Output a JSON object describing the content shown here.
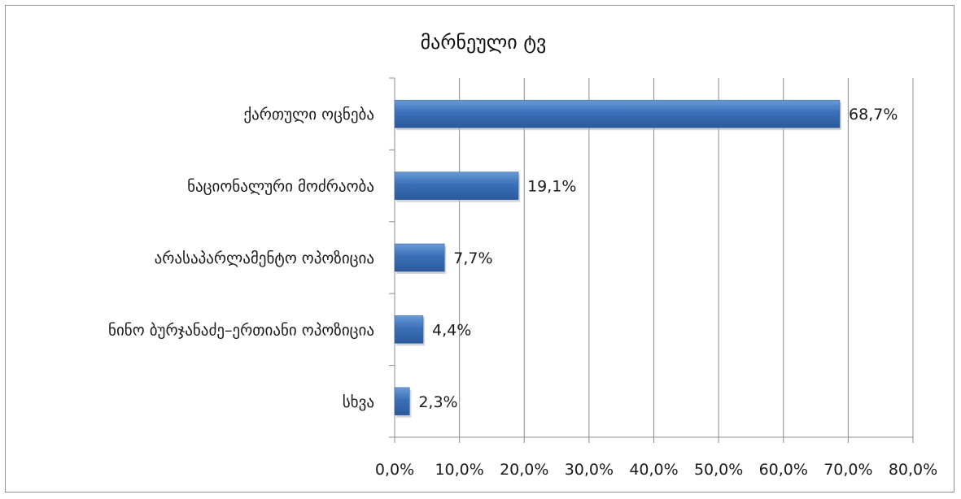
{
  "chart_data": {
    "type": "bar",
    "orientation": "horizontal",
    "title": "მარნეული ტვ",
    "categories": [
      "ქართული ოცნება",
      "ნაციონალური მოძრაობა",
      "არასაპარლამენტო ოპოზიცია",
      "ნინო ბურჯანაძე–ერთიანი ოპოზიცია",
      "სხვა"
    ],
    "values": [
      68.7,
      19.1,
      7.7,
      4.4,
      2.3
    ],
    "value_labels": [
      "68,7%",
      "19,1%",
      "7,7%",
      "4,4%",
      "2,3%"
    ],
    "xlim": [
      0,
      80
    ],
    "x_ticks": [
      "0,0%",
      "10,0%",
      "20,0%",
      "30,0%",
      "40,0%",
      "50,0%",
      "60,0%",
      "70,0%",
      "80,0%"
    ],
    "grid": "vertical",
    "legend": "none",
    "bar_color": "#3a70b8"
  }
}
